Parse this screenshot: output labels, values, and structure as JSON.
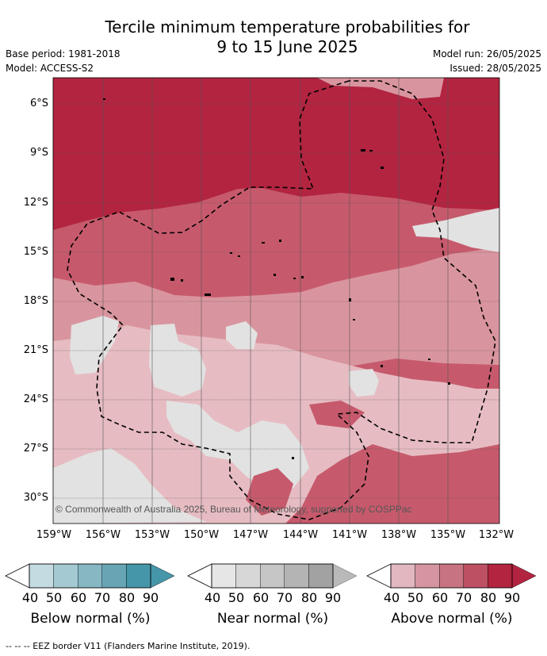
{
  "title": {
    "line1": "Tercile minimum temperature probabilities for",
    "line2": "9 to 15 June 2025"
  },
  "meta": {
    "base_period": "Base period: 1981-2018",
    "model": "Model: ACCESS-S2",
    "model_run": "Model run: 26/05/2025",
    "issued": "Issued: 28/05/2025"
  },
  "map": {
    "copyright": "© Commonwealth of Australia 2025, Bureau of Meteorology, supported by COSPPac",
    "lat_labels": [
      "6°S",
      "9°S",
      "12°S",
      "15°S",
      "18°S",
      "21°S",
      "24°S",
      "27°S",
      "30°S"
    ],
    "lon_labels": [
      "159°W",
      "156°W",
      "153°W",
      "150°W",
      "147°W",
      "144°W",
      "141°W",
      "138°W",
      "135°W",
      "132°W"
    ],
    "colors": {
      "above_dark": "#b22440",
      "above_mid": "#c65a6c",
      "above_light": "#d9959f",
      "above_pale": "#e6bcc2",
      "near": "#e2e2e2"
    }
  },
  "legends": [
    {
      "title": "Below normal (%)",
      "ticks": [
        "40",
        "50",
        "60",
        "70",
        "80",
        "90"
      ],
      "colors": [
        "#c3dbe1",
        "#a4c9d2",
        "#86b7c3",
        "#67a5b4",
        "#4596a8"
      ]
    },
    {
      "title": "Near normal (%)",
      "ticks": [
        "40",
        "50",
        "60",
        "70",
        "80",
        "90"
      ],
      "colors": [
        "#e6e6e6",
        "#d7d7d7",
        "#c6c6c6",
        "#b4b4b4",
        "#a2a2a2"
      ]
    },
    {
      "title": "Above normal (%)",
      "ticks": [
        "40",
        "50",
        "60",
        "70",
        "80",
        "90"
      ],
      "colors": [
        "#e2b7bf",
        "#d495a0",
        "#c87381",
        "#bd5063",
        "#b22440"
      ]
    }
  ],
  "footer": "--  --  -- EEZ border V11 (Flanders Marine Institute, 2019)."
}
